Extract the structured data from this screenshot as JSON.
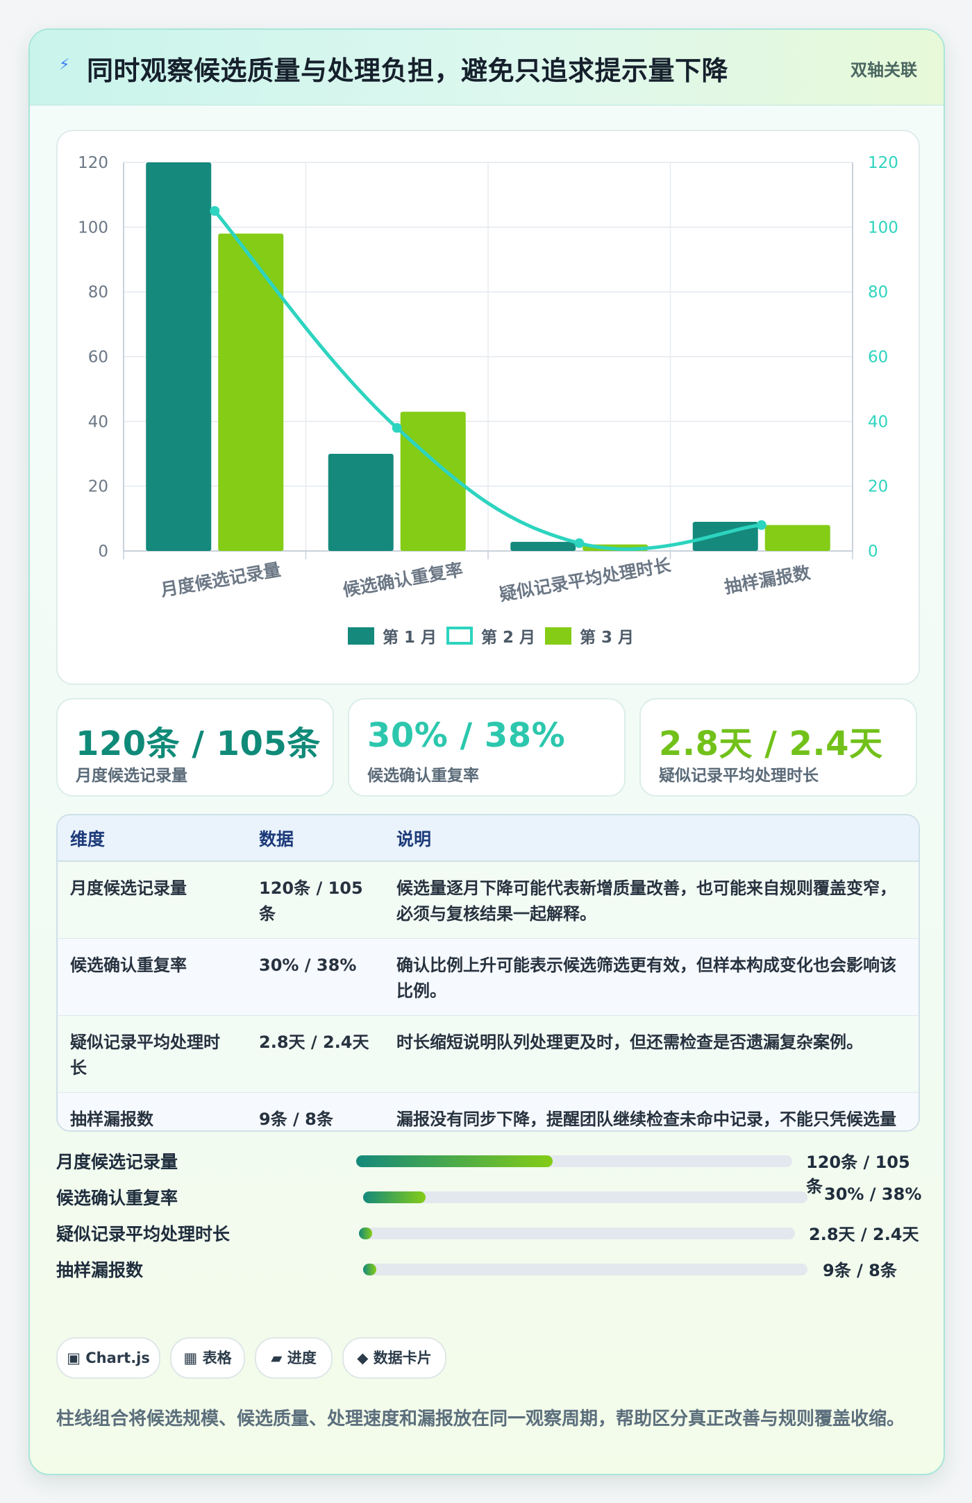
{
  "header": {
    "title": "同时观察候选质量与处理负担，避免只追求提示量下降",
    "tag": "双轴关联",
    "icon": "lightning-icon"
  },
  "chart_data": {
    "type": "bar",
    "title": "",
    "categories": [
      "月度候选记录量",
      "候选确认重复率",
      "疑似记录平均处理时长",
      "抽样漏报数"
    ],
    "series": [
      {
        "name": "第 1 月",
        "type": "bar",
        "axis": "left",
        "color": "#14897c",
        "values": [
          120,
          30,
          2.8,
          9
        ]
      },
      {
        "name": "第 2 月",
        "type": "line",
        "axis": "right",
        "color": "#2dd4bf",
        "values": [
          105,
          38,
          2.4,
          8
        ]
      },
      {
        "name": "第 3 月",
        "type": "bar",
        "axis": "left",
        "color": "#84cc16",
        "values": [
          98,
          43,
          2,
          8
        ]
      }
    ],
    "ylim": [
      0,
      120
    ],
    "y2lim": [
      0,
      120
    ],
    "yticks": [
      "0",
      "20",
      "40",
      "60",
      "80",
      "100",
      "120"
    ],
    "grid": true,
    "legend": "bottom",
    "xlabel": "",
    "ylabel": ""
  },
  "kpis": [
    {
      "value": "120条 / 105条",
      "label": "月度候选记录量",
      "color": "#0f8a78"
    },
    {
      "value": "30% / 38%",
      "label": "候选确认重复率",
      "color": "#2cc7ad"
    },
    {
      "value": "2.8天 / 2.4天",
      "label": "疑似记录平均处理时长",
      "color": "#72c11a"
    }
  ],
  "table": {
    "headers": [
      "维度",
      "数据",
      "说明"
    ],
    "rows": [
      [
        "月度候选记录量",
        "120条 / 105条",
        "候选量逐月下降可能代表新增质量改善，也可能来自规则覆盖变窄，必须与复核结果一起解释。"
      ],
      [
        "候选确认重复率",
        "30% / 38%",
        "确认比例上升可能表示候选筛选更有效，但样本构成变化也会影响该比例。"
      ],
      [
        "疑似记录平均处理时长",
        "2.8天 / 2.4天",
        "时长缩短说明队列处理更及时，但还需检查是否遗漏复杂案例。"
      ],
      [
        "抽样漏报数",
        "9条 / 8条",
        "漏报没有同步下降，提醒团队继续检查未命中记录，不能只凭候选量下降认定规则完善。"
      ]
    ]
  },
  "progress": [
    {
      "label": "月度候选记录量",
      "value": "120条 / 105条",
      "fraction": 0.45
    },
    {
      "label": "候选确认重复率",
      "value": "30% / 38%",
      "fraction": 0.14
    },
    {
      "label": "疑似记录平均处理时长",
      "value": "2.8天 / 2.4天",
      "fraction": 0.03
    },
    {
      "label": "抽样漏报数",
      "value": "9条 / 8条",
      "fraction": 0.03
    }
  ],
  "chips": [
    {
      "icon": "square-icon",
      "glyph": "▣",
      "label": "Chart.js"
    },
    {
      "icon": "table-icon",
      "glyph": "▦",
      "label": "表格"
    },
    {
      "icon": "progress-icon",
      "glyph": "▰",
      "label": "进度"
    },
    {
      "icon": "diamond-icon",
      "glyph": "◆",
      "label": "数据卡片"
    }
  ],
  "note": "柱线组合将候选规模、候选质量、处理速度和漏报放在同一观察周期，帮助区分真正改善与规则覆盖收缩。"
}
